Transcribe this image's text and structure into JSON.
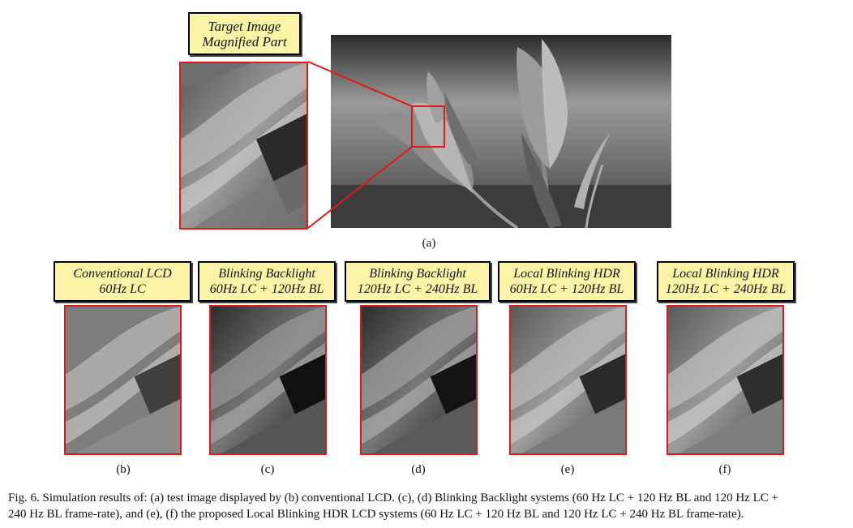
{
  "panel_a": {
    "label_line1": "Target Image",
    "label_line2": "Magnified Part",
    "sub_label": "(a)"
  },
  "panels": [
    {
      "line1": "Conventional LCD",
      "line2": "60Hz LC",
      "sub_label": "(b)"
    },
    {
      "line1": "Blinking Backlight",
      "line2": "60Hz LC + 120Hz BL",
      "sub_label": "(c)"
    },
    {
      "line1": "Blinking Backlight",
      "line2": "120Hz LC + 240Hz BL",
      "sub_label": "(d)"
    },
    {
      "line1": "Local Blinking HDR",
      "line2": "60Hz LC + 120Hz BL",
      "sub_label": "(e)"
    },
    {
      "line1": "Local Blinking HDR",
      "line2": "120Hz LC + 240Hz BL",
      "sub_label": "(f)"
    }
  ],
  "caption": {
    "line1": "Fig. 6.   Simulation results of: (a) test image displayed by (b) conventional LCD. (c), (d) Blinking Backlight systems (60 Hz LC + 120  Hz BL and 120 Hz LC +",
    "line2": "240  Hz BL frame-rate), and (e), (f) the proposed Local Blinking HDR LCD systems (60 Hz  LC + 120 Hz BL and 120 Hz  LC + 240 Hz BL frame-rate)."
  },
  "colors": {
    "label_fill": "#fbf3a5",
    "highlight_red": "#e31919"
  }
}
